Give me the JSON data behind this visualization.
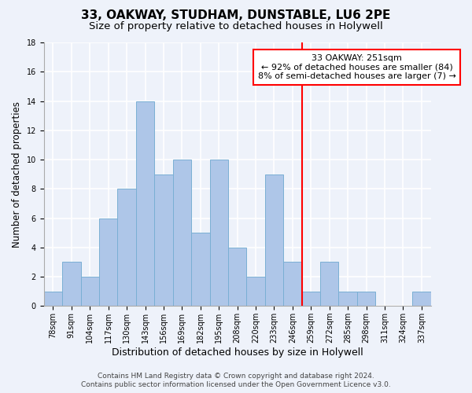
{
  "title": "33, OAKWAY, STUDHAM, DUNSTABLE, LU6 2PE",
  "subtitle": "Size of property relative to detached houses in Holywell",
  "xlabel": "Distribution of detached houses by size in Holywell",
  "ylabel": "Number of detached properties",
  "categories": [
    "78sqm",
    "91sqm",
    "104sqm",
    "117sqm",
    "130sqm",
    "143sqm",
    "156sqm",
    "169sqm",
    "182sqm",
    "195sqm",
    "208sqm",
    "220sqm",
    "233sqm",
    "246sqm",
    "259sqm",
    "272sqm",
    "285sqm",
    "298sqm",
    "311sqm",
    "324sqm",
    "337sqm"
  ],
  "values": [
    1,
    3,
    2,
    6,
    8,
    14,
    9,
    10,
    5,
    10,
    4,
    2,
    9,
    3,
    1,
    3,
    1,
    1,
    0,
    0,
    1
  ],
  "bar_color": "#aec6e8",
  "bar_edgecolor": "#7aafd4",
  "background_color": "#eef2fa",
  "grid_color": "#ffffff",
  "vline_x": 13.5,
  "vline_color": "red",
  "annotation_title": "33 OAKWAY: 251sqm",
  "annotation_line1": "← 92% of detached houses are smaller (84)",
  "annotation_line2": "8% of semi-detached houses are larger (7) →",
  "annotation_box_edgecolor": "red",
  "annotation_box_facecolor": "white",
  "footer_line1": "Contains HM Land Registry data © Crown copyright and database right 2024.",
  "footer_line2": "Contains public sector information licensed under the Open Government Licence v3.0.",
  "ylim": [
    0,
    18
  ],
  "yticks": [
    0,
    2,
    4,
    6,
    8,
    10,
    12,
    14,
    16,
    18
  ],
  "title_fontsize": 11,
  "subtitle_fontsize": 9.5,
  "xlabel_fontsize": 9,
  "ylabel_fontsize": 8.5,
  "tick_fontsize": 7,
  "footer_fontsize": 6.5,
  "annotation_fontsize": 8
}
